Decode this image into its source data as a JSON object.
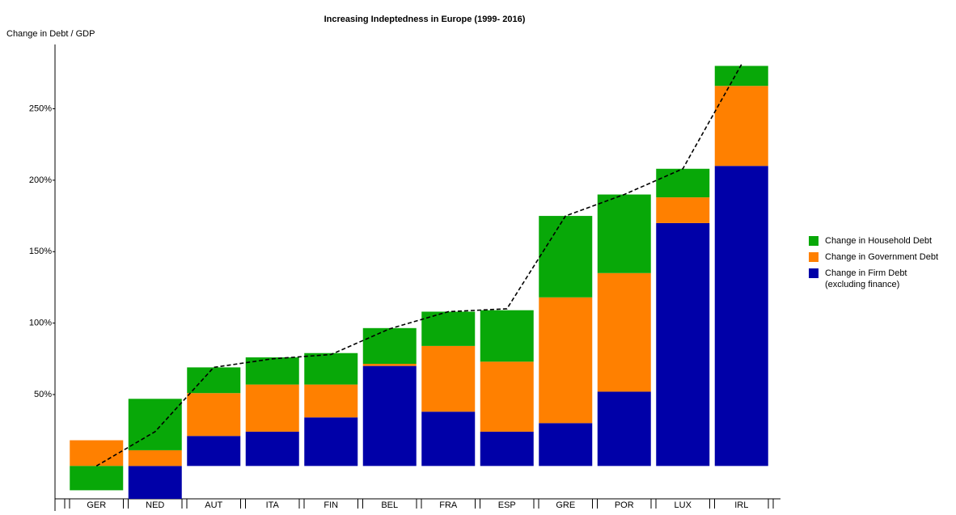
{
  "chart_data": {
    "type": "stacked-bar",
    "title": "Increasing Indeptedness in Europe (1999- 2016)",
    "y_label": "Change in Debt / GDP",
    "categories": [
      "GER",
      "NED",
      "AUT",
      "ITA",
      "FIN",
      "BEL",
      "FRA",
      "ESP",
      "GRE",
      "POR",
      "LUX",
      "IRL"
    ],
    "series": [
      {
        "name": "Change in Firm Debt\n(excluding finance)",
        "color": "#0000a8",
        "values": [
          0,
          -23,
          21,
          24,
          34,
          70,
          38,
          24,
          30,
          52,
          170,
          210
        ]
      },
      {
        "name": "Change in Government Debt",
        "color": "#ff8000",
        "values": [
          18,
          11,
          30,
          33,
          23,
          1.5,
          46,
          49,
          88,
          83,
          18,
          56
        ]
      },
      {
        "name": "Change in Household Debt",
        "color": "#08a808",
        "values": [
          -17,
          36,
          18,
          19,
          22,
          25,
          24,
          36,
          57,
          55,
          20,
          14
        ]
      }
    ],
    "line": {
      "color": "#000000",
      "dashed": true,
      "values": [
        0,
        24,
        69,
        75,
        78,
        96,
        108,
        110,
        175,
        190,
        208,
        281
      ]
    },
    "ylim": [
      -23,
      295
    ],
    "yticks": [
      {
        "value": 50,
        "label": "50%"
      },
      {
        "value": 100,
        "label": "100%"
      },
      {
        "value": 150,
        "label": "150%"
      },
      {
        "value": 200,
        "label": "200%"
      },
      {
        "value": 250,
        "label": "250%"
      }
    ],
    "grid": false,
    "legend": "right"
  }
}
